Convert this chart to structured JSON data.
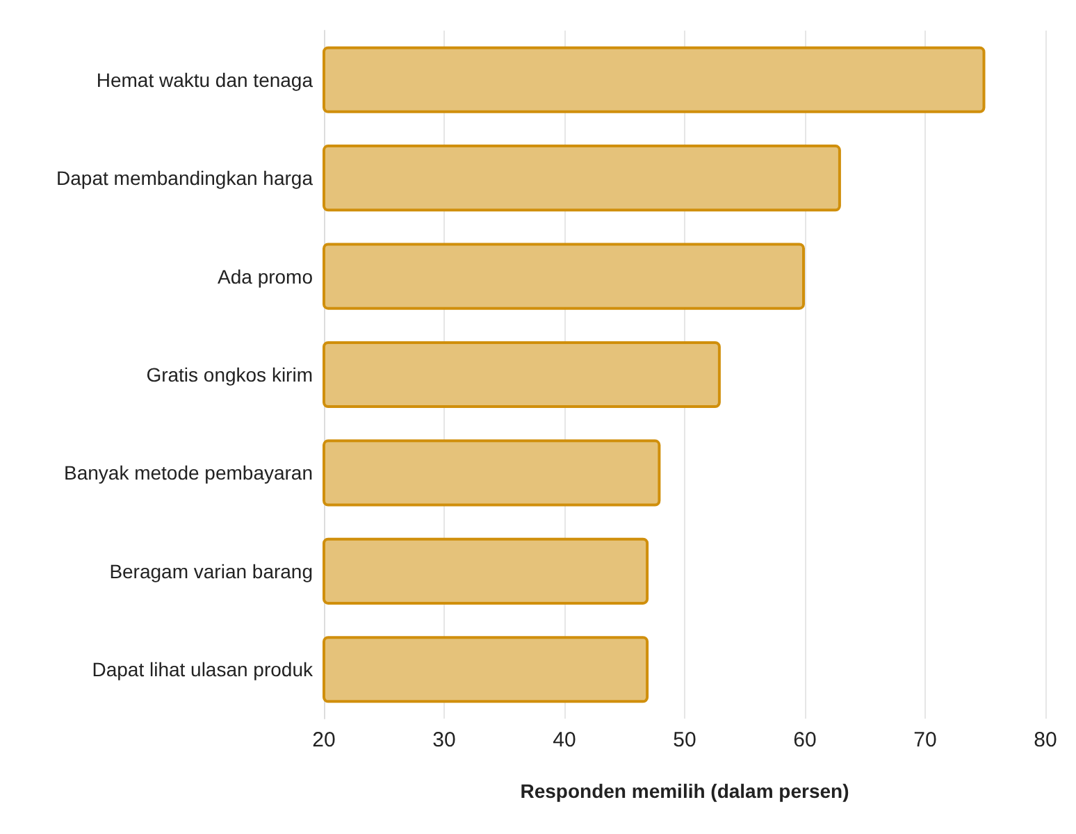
{
  "chart_data": {
    "type": "bar",
    "orientation": "horizontal",
    "xlabel": "Responden memilih (dalam persen)",
    "categories": [
      "Hemat waktu dan tenaga",
      "Dapat membandingkan harga",
      "Ada promo",
      "Gratis ongkos kirim",
      "Banyak metode pembayaran",
      "Beragam varian barang",
      "Dapat lihat ulasan produk"
    ],
    "values": [
      75,
      63,
      60,
      53,
      48,
      47,
      47
    ],
    "color": "#e5c27a",
    "xlim": [
      20,
      80
    ],
    "xticks": [
      20,
      30,
      40,
      50,
      60,
      70,
      80
    ],
    "grid": "x"
  }
}
